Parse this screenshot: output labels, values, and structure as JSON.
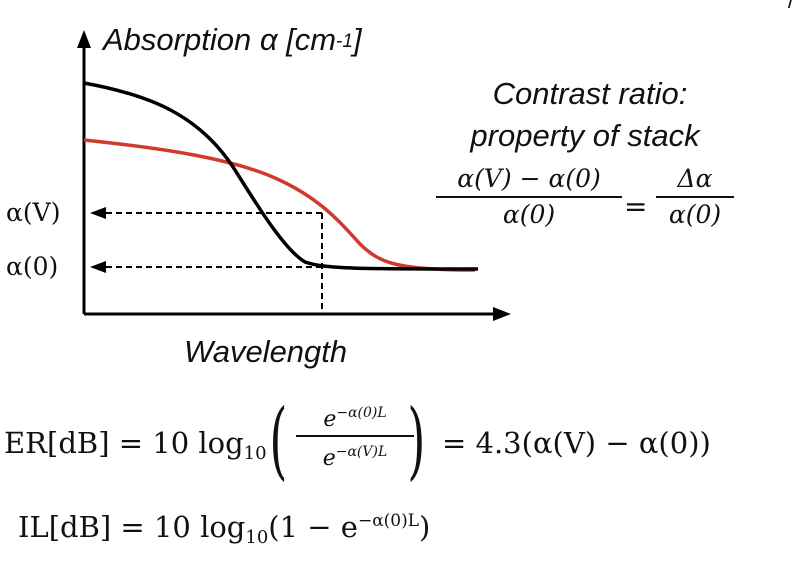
{
  "plot": {
    "y_axis_label": "Absorption α [cm",
    "y_axis_exp": "-1",
    "y_axis_close": "]",
    "x_axis_label": "Wavelength",
    "tick_alpha_v": "α(V)",
    "tick_alpha_0": "α(0)",
    "colors": {
      "curve_zero_bias": "#000000",
      "curve_biased": "#d0392b",
      "axes": "#000000"
    }
  },
  "contrast": {
    "line1": "Contrast ratio:",
    "line2": "property of stack",
    "lhs_num": "α(V) − α(0)",
    "lhs_den": "α(0)",
    "equals": "=",
    "rhs_num": "Δα",
    "rhs_den": "α(0)"
  },
  "er_equation": {
    "lhs": "ER[dB] = 10 log",
    "sub": "10",
    "num_base": "e",
    "num_exp": "−α(0)L",
    "den_base": "e",
    "den_exp": "−α(V)L",
    "rhs": "= 4.3(α(V) − α(0))"
  },
  "il_equation": {
    "lhs": "IL[dB] = 10 log",
    "sub": "10",
    "mid": "(1 − e",
    "exp": "−α(0)L",
    "close": ")"
  },
  "corner_mark": "/"
}
